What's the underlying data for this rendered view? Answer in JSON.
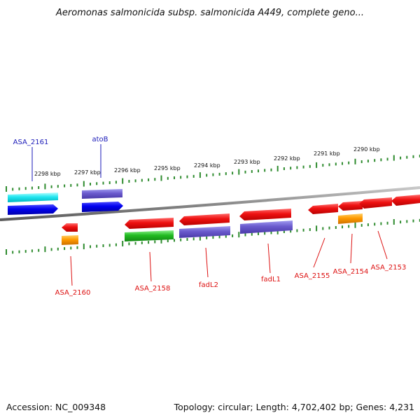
{
  "title": "Aeromonas salmonicida subsp. salmonicida A449, complete geno...",
  "footer": {
    "accession": "Accession: NC_009348",
    "summary": "Topology: circular; Length: 4,702,402 bp; Genes: 4,231"
  },
  "colors": {
    "backbone": "#8a8a8a",
    "tick": "#2e8b2e",
    "label_forward": "#1a1ab8",
    "label_reverse": "#dd1111"
  },
  "position_labels": [
    "2298 kbp",
    "2297 kbp",
    "2296 kbp",
    "2295 kbp",
    "2294 kbp",
    "2293 kbp",
    "2292 kbp",
    "2291 kbp",
    "2290 kbp"
  ],
  "genes": [
    {
      "label": "ASA_2161",
      "strand": "forward"
    },
    {
      "label": "atoB",
      "strand": "forward"
    },
    {
      "label": "ASA_2160",
      "strand": "reverse"
    },
    {
      "label": "ASA_2158",
      "strand": "reverse"
    },
    {
      "label": "fadL2",
      "strand": "reverse"
    },
    {
      "label": "fadL1",
      "strand": "reverse"
    },
    {
      "label": "ASA_2155",
      "strand": "reverse"
    },
    {
      "label": "ASA_2154",
      "strand": "reverse"
    },
    {
      "label": "ASA_2153",
      "strand": "reverse"
    }
  ]
}
